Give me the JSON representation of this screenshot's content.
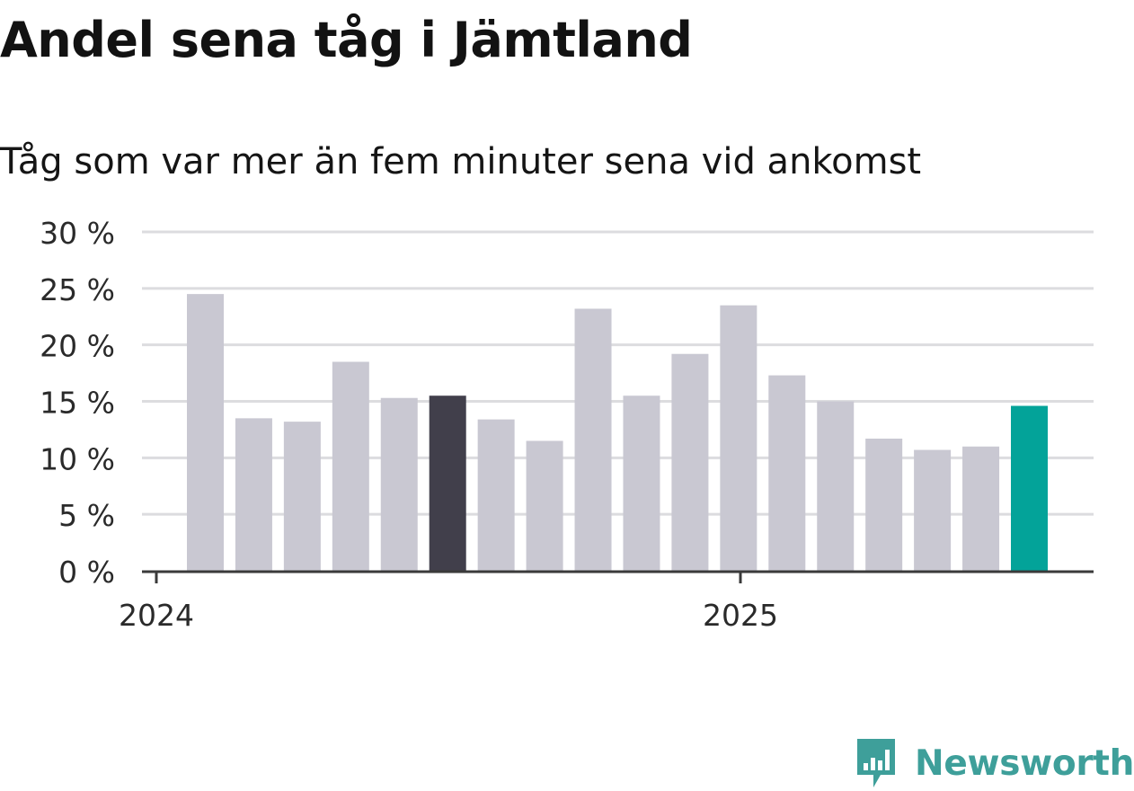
{
  "header": {
    "title": "Andel sena tåg i Jämtland",
    "subtitle": "Tåg som var mer än fem minuter sena vid ankomst"
  },
  "chart_data": {
    "type": "bar",
    "title": "Andel sena tåg i Jämtland",
    "subtitle": "Tåg som var mer än fem minuter sena vid ankomst",
    "xlabel": "",
    "ylabel": "",
    "unit": "%",
    "ylim": [
      0,
      30
    ],
    "yticks": [
      "0 %",
      "5 %",
      "10 %",
      "15 %",
      "20 %",
      "25 %",
      "30 %"
    ],
    "ytick_values": [
      0,
      5,
      10,
      15,
      20,
      25,
      30
    ],
    "x_axis_labels": [
      "2024",
      "2025"
    ],
    "grid": true,
    "legend": "none",
    "categories": [
      "2024-01",
      "2024-02",
      "2024-03",
      "2024-04",
      "2024-05",
      "2024-06",
      "2024-07",
      "2024-08",
      "2024-09",
      "2024-10",
      "2024-11",
      "2024-12",
      "2025-01",
      "2025-02",
      "2025-03",
      "2025-04",
      "2025-05",
      "2025-06"
    ],
    "values": [
      24.5,
      13.5,
      13.2,
      18.5,
      15.3,
      15.5,
      13.4,
      11.5,
      23.2,
      15.5,
      19.2,
      23.5,
      17.3,
      15.0,
      11.7,
      10.7,
      11.0,
      14.6
    ],
    "highlight": {
      "2024-06": "#413f4b",
      "2025-06": "#03a399"
    },
    "colors": {
      "bar": "#c9c8d2",
      "grid": "#dcdcdf",
      "axis": "#3a3a3a"
    }
  },
  "brand": {
    "name": "Newsworthy",
    "icon": "newsworthy-logo-icon",
    "color": "#3e9f9a"
  }
}
